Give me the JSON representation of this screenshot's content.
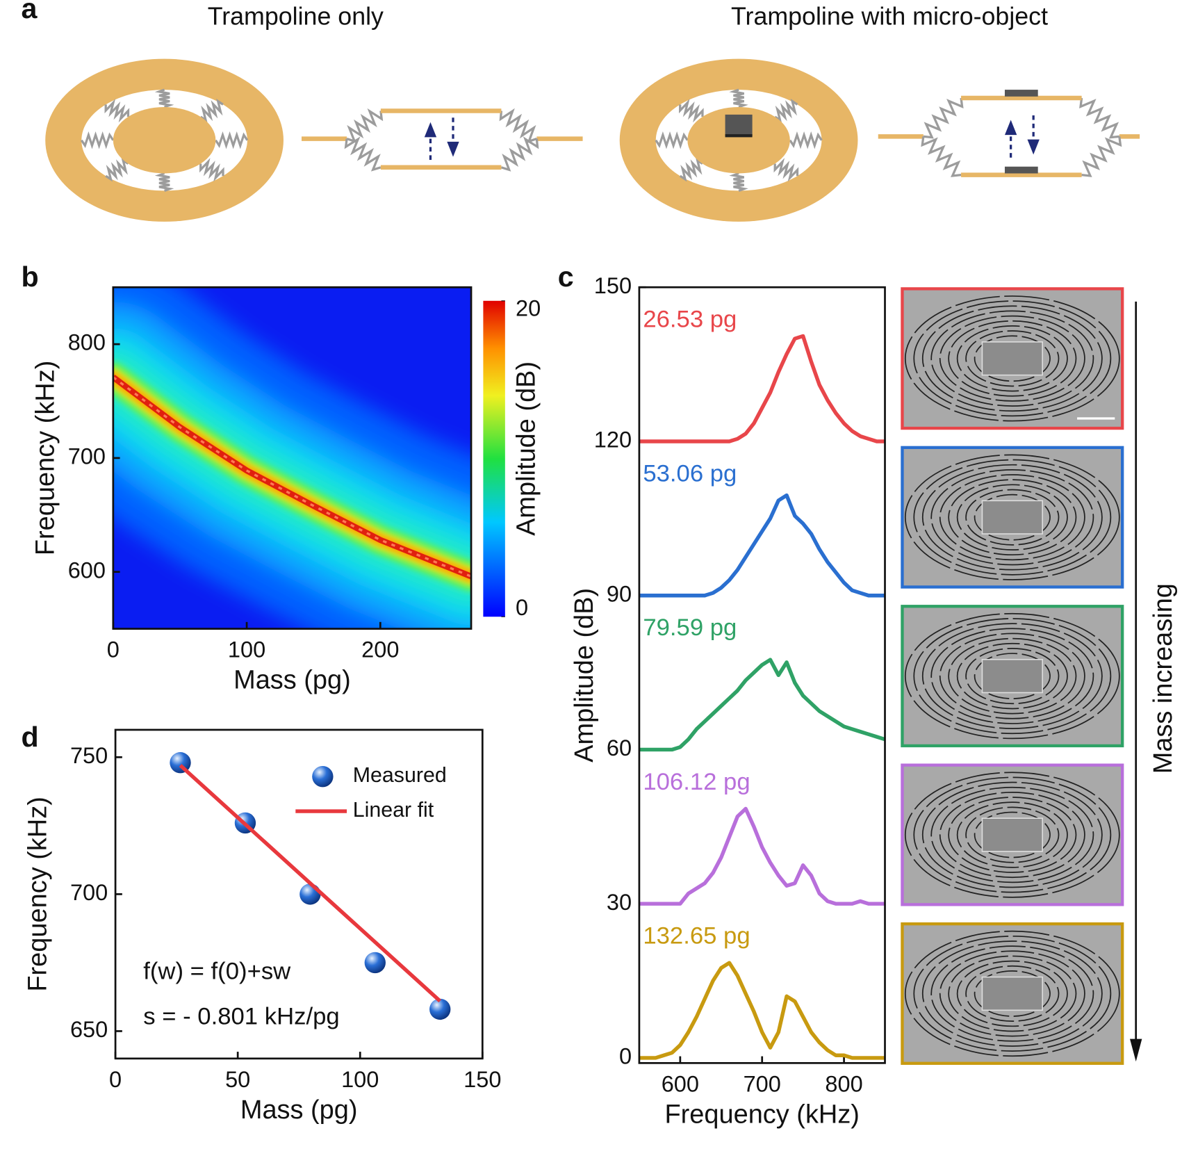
{
  "panel_labels": [
    "a",
    "b",
    "c",
    "d"
  ],
  "diagram": {
    "titles": [
      "Trampoline only",
      "Trampoline with micro-object"
    ]
  },
  "chart_data": [
    {
      "type": "heatmap",
      "xlabel": "Mass (pg)",
      "ylabel": "Frequency (kHz)",
      "xlim": [
        0,
        268
      ],
      "ylim": [
        550,
        850
      ],
      "xticks": [
        0,
        100,
        200
      ],
      "yticks": [
        600,
        700,
        800
      ],
      "ridge": {
        "x": [
          0,
          50,
          100,
          150,
          200,
          268
        ],
        "y": [
          771,
          727,
          689,
          658,
          628,
          596
        ]
      },
      "colorbar_label": "Amplitude (dB)",
      "clim": [
        0,
        20
      ],
      "cticks": [
        0,
        20
      ]
    },
    {
      "type": "line",
      "xlabel": "Frequency (kHz)",
      "ylabel": "Amplitude (dB)",
      "xlim": [
        550,
        850
      ],
      "ylim": [
        -1,
        150
      ],
      "xticks": [
        600,
        700,
        800
      ],
      "yticks": [
        0,
        30,
        60,
        90,
        120,
        150
      ],
      "x": [
        550,
        560,
        570,
        580,
        590,
        600,
        610,
        620,
        630,
        640,
        650,
        660,
        670,
        680,
        690,
        700,
        710,
        720,
        730,
        740,
        750,
        760,
        770,
        780,
        790,
        800,
        810,
        820,
        830,
        840,
        850
      ],
      "series": [
        {
          "name": "26.53 pg",
          "color": "#e8464a",
          "values": [
            120,
            120,
            120,
            120,
            120,
            120,
            120,
            120,
            120,
            120,
            120,
            120,
            120.5,
            121.5,
            123.5,
            126.5,
            129.5,
            133.5,
            137,
            140,
            140.5,
            135.5,
            131,
            128,
            125.5,
            123.5,
            122,
            121,
            120.5,
            120,
            120
          ]
        },
        {
          "name": "53.06 pg",
          "color": "#2a6fd0",
          "values": [
            90,
            90,
            90,
            90,
            90,
            90,
            90,
            90,
            90,
            90.5,
            91.5,
            93,
            95,
            97.5,
            100,
            102.5,
            105,
            108.5,
            109.5,
            105.5,
            104,
            102,
            99,
            96.5,
            94.5,
            92.5,
            91,
            90.5,
            90,
            90,
            90
          ]
        },
        {
          "name": "79.59 pg",
          "color": "#2fa266",
          "values": [
            60,
            60,
            60,
            60,
            60,
            60.5,
            62,
            64,
            65.5,
            67,
            68.5,
            70,
            71.5,
            73.5,
            75,
            76.5,
            77.5,
            74.5,
            77,
            73,
            70.5,
            69,
            67.5,
            66.5,
            65.5,
            64.5,
            64,
            63.5,
            63,
            62.5,
            62
          ]
        },
        {
          "name": "106.12 pg",
          "color": "#b86fdb",
          "values": [
            30,
            30,
            30,
            30,
            30,
            30,
            32,
            33,
            34,
            36,
            39,
            43,
            47,
            48.5,
            45,
            41,
            38,
            35.5,
            33.5,
            34,
            37.5,
            35.5,
            32,
            30.5,
            30,
            30,
            30,
            30.5,
            30,
            30,
            30
          ]
        },
        {
          "name": "132.65 pg",
          "color": "#c89a10",
          "values": [
            0,
            0,
            0,
            0.5,
            1,
            2.5,
            5,
            8,
            11.5,
            15,
            17.5,
            18.5,
            16,
            12.5,
            9,
            5,
            2,
            5,
            12,
            11,
            8,
            5,
            3,
            1.5,
            0.5,
            0.5,
            0,
            0,
            0,
            0,
            0
          ]
        }
      ],
      "annotation": "Mass increasing"
    },
    {
      "type": "scatter",
      "xlabel": "Mass (pg)",
      "ylabel": "Frequency (kHz)",
      "xlim": [
        0,
        150
      ],
      "ylim": [
        640,
        760
      ],
      "xticks": [
        0,
        50,
        100,
        150
      ],
      "yticks": [
        650,
        700,
        750
      ],
      "series": [
        {
          "name": "Measured",
          "color": "#2a6fd6",
          "kind": "points",
          "x": [
            26.53,
            53.06,
            79.59,
            106.12,
            132.65
          ],
          "y": [
            748,
            726,
            700,
            675,
            658
          ]
        },
        {
          "name": "Linear fit",
          "color": "#e8383d",
          "kind": "line",
          "x": [
            26.53,
            132.65
          ],
          "y": [
            747,
            661
          ]
        }
      ],
      "annotations": [
        "f(w) = f(0)+sw",
        "s = - 0.801 kHz/pg"
      ]
    }
  ]
}
